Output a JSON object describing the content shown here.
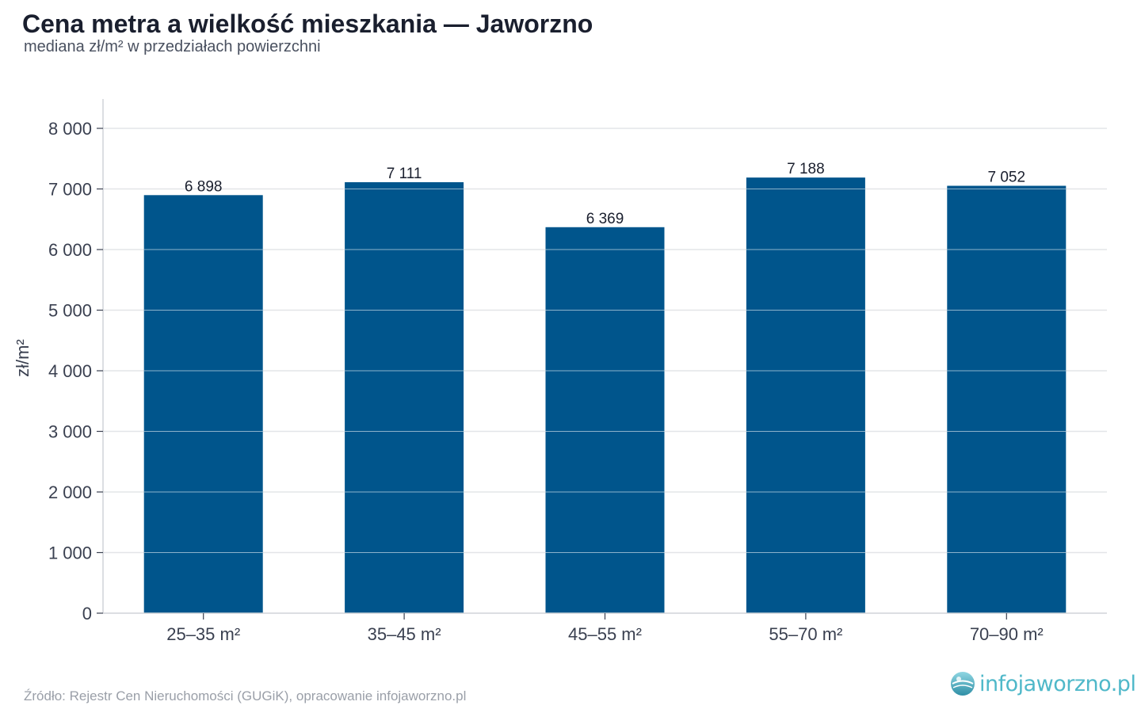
{
  "header": {
    "title": "Cena metra a wielkość mieszkania — Jaworzno",
    "subtitle": "mediana zł/m² w przedziałach powierzchni"
  },
  "footer": {
    "source": "Źródło: Rejestr Cen Nieruchomości (GUGiK), opracowanie infojaworzno.pl",
    "logo_text": "infojaworzno.pl"
  },
  "colors": {
    "bar": "#00558c",
    "grid": "#e3e5e8",
    "axis": "#d0d3d8",
    "tick_text": "#3a4050",
    "label_text": "#1a1f2e",
    "logo": "#4fb8c9"
  },
  "chart_data": {
    "type": "bar",
    "title": "Cena metra a wielkość mieszkania — Jaworzno",
    "subtitle": "mediana zł/m² w przedziałach powierzchni",
    "xlabel": "",
    "ylabel": "zł/m²",
    "categories": [
      "25–35 m²",
      "35–45 m²",
      "45–55 m²",
      "55–70 m²",
      "70–90 m²"
    ],
    "values": [
      6898,
      7111,
      6369,
      7188,
      7052
    ],
    "value_labels": [
      "6 898",
      "7 111",
      "6 369",
      "7 188",
      "7 052"
    ],
    "ylim": [
      0,
      8000
    ],
    "yticks": [
      0,
      1000,
      2000,
      3000,
      4000,
      5000,
      6000,
      7000,
      8000
    ],
    "ytick_labels": [
      "0",
      "1 000",
      "2 000",
      "3 000",
      "4 000",
      "5 000",
      "6 000",
      "7 000",
      "8 000"
    ],
    "grid": true,
    "legend": "none"
  }
}
